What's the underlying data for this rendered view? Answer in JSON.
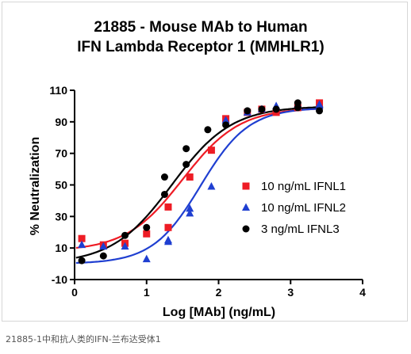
{
  "chart_data": {
    "type": "scatter",
    "title": "21885 - Mouse MAb to Human",
    "subtitle": "IFN Lambda Receptor 1 (MMHLR1)",
    "xlabel": "Log [MAb] (ng/mL)",
    "ylabel": "% Neutralization",
    "xlim": [
      0,
      4
    ],
    "ylim": [
      -10,
      110
    ],
    "x_ticks": [
      0,
      1,
      2,
      3,
      4
    ],
    "y_ticks": [
      -10,
      10,
      30,
      50,
      70,
      90,
      110
    ],
    "grid": false,
    "legend_position": "right",
    "series": [
      {
        "name": "10 ng/mL IFNL1",
        "marker": "square",
        "color": "#ee1c25",
        "points": [
          {
            "x": 0.1,
            "y": 16
          },
          {
            "x": 0.4,
            "y": 12
          },
          {
            "x": 0.7,
            "y": 13
          },
          {
            "x": 1.0,
            "y": 19
          },
          {
            "x": 1.3,
            "y": 36
          },
          {
            "x": 1.3,
            "y": 23
          },
          {
            "x": 1.6,
            "y": 55
          },
          {
            "x": 1.9,
            "y": 72
          },
          {
            "x": 2.1,
            "y": 92
          },
          {
            "x": 2.4,
            "y": 96
          },
          {
            "x": 2.6,
            "y": 98
          },
          {
            "x": 2.8,
            "y": 96
          },
          {
            "x": 3.1,
            "y": 99
          },
          {
            "x": 3.4,
            "y": 102
          }
        ],
        "curve": {
          "bottom": 8,
          "top": 99,
          "logEC50": 1.5,
          "hill": 1.1
        }
      },
      {
        "name": "10 ng/mL IFNL2",
        "marker": "triangle",
        "color": "#1f3fd1",
        "points": [
          {
            "x": 0.1,
            "y": 12
          },
          {
            "x": 0.4,
            "y": 11
          },
          {
            "x": 0.7,
            "y": 11
          },
          {
            "x": 1.0,
            "y": 3
          },
          {
            "x": 1.3,
            "y": 14
          },
          {
            "x": 1.3,
            "y": 15
          },
          {
            "x": 1.6,
            "y": 32
          },
          {
            "x": 1.6,
            "y": 35
          },
          {
            "x": 1.9,
            "y": 49
          },
          {
            "x": 2.1,
            "y": 91
          },
          {
            "x": 2.4,
            "y": 96
          },
          {
            "x": 2.6,
            "y": 98
          },
          {
            "x": 2.8,
            "y": 100
          },
          {
            "x": 3.1,
            "y": 101
          },
          {
            "x": 3.4,
            "y": 101
          }
        ],
        "curve": {
          "bottom": 0,
          "top": 99,
          "logEC50": 1.75,
          "hill": 1.3
        }
      },
      {
        "name": "3 ng/mL IFNL3",
        "marker": "circle",
        "color": "#000000",
        "points": [
          {
            "x": 0.1,
            "y": 2
          },
          {
            "x": 0.4,
            "y": 5
          },
          {
            "x": 0.7,
            "y": 18
          },
          {
            "x": 1.0,
            "y": 23
          },
          {
            "x": 1.25,
            "y": 44
          },
          {
            "x": 1.25,
            "y": 55
          },
          {
            "x": 1.55,
            "y": 63
          },
          {
            "x": 1.55,
            "y": 73
          },
          {
            "x": 1.85,
            "y": 85
          },
          {
            "x": 2.1,
            "y": 88
          },
          {
            "x": 2.4,
            "y": 97
          },
          {
            "x": 2.6,
            "y": 98
          },
          {
            "x": 2.8,
            "y": 98
          },
          {
            "x": 3.1,
            "y": 102
          },
          {
            "x": 3.1,
            "y": 99
          },
          {
            "x": 3.4,
            "y": 97
          }
        ],
        "curve": {
          "bottom": 0,
          "top": 100,
          "logEC50": 1.35,
          "hill": 1.05
        }
      }
    ]
  },
  "caption": "21885-1中和抗人类的IFN-兰布达受体1"
}
